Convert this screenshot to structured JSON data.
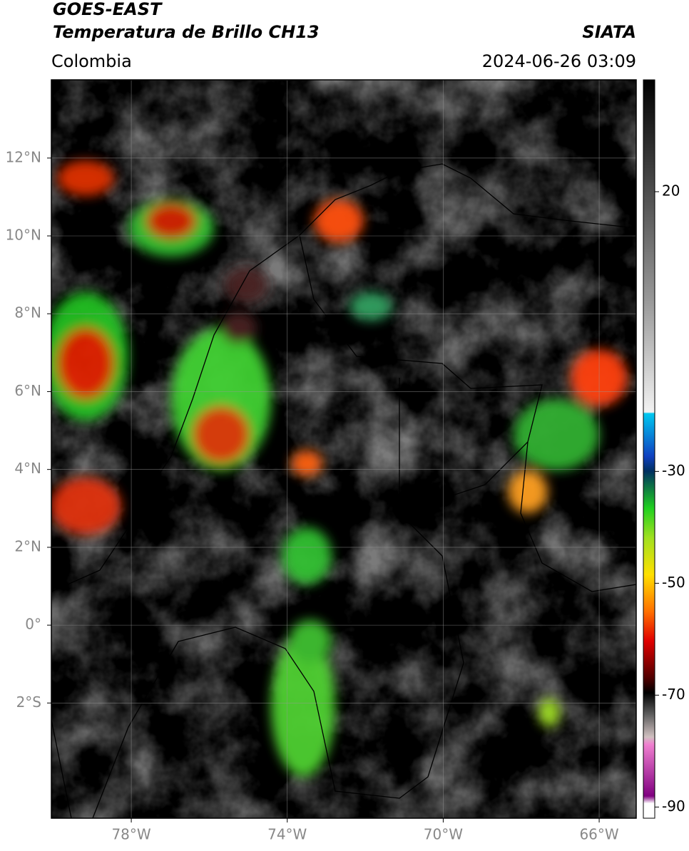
{
  "header": {
    "satellite": "GOES-EAST",
    "product": "Temperatura de Brillo CH13",
    "source": "SIATA",
    "region": "Colombia",
    "timestamp": "2024-06-26 03:09"
  },
  "map": {
    "lonlim": [
      -80.05,
      -65.05
    ],
    "latlim": [
      -4.96,
      14.01
    ],
    "lon_ticks": [
      {
        "value": -78,
        "label": "78°W"
      },
      {
        "value": -74,
        "label": "74°W"
      },
      {
        "value": -70,
        "label": "70°W"
      },
      {
        "value": -66,
        "label": "66°W"
      }
    ],
    "lat_ticks": [
      {
        "value": 12,
        "label": "12°N"
      },
      {
        "value": 10,
        "label": "10°N"
      },
      {
        "value": 8,
        "label": "8°N"
      },
      {
        "value": 6,
        "label": "6°N"
      },
      {
        "value": 4,
        "label": "4°N"
      },
      {
        "value": 2,
        "label": "2°N"
      },
      {
        "value": 0,
        "label": "0°"
      },
      {
        "value": -2,
        "label": "2°S"
      }
    ]
  },
  "colorbar": {
    "lim": [
      -92,
      40
    ],
    "ticks": [
      20,
      -30,
      -50,
      -70,
      -90
    ]
  }
}
